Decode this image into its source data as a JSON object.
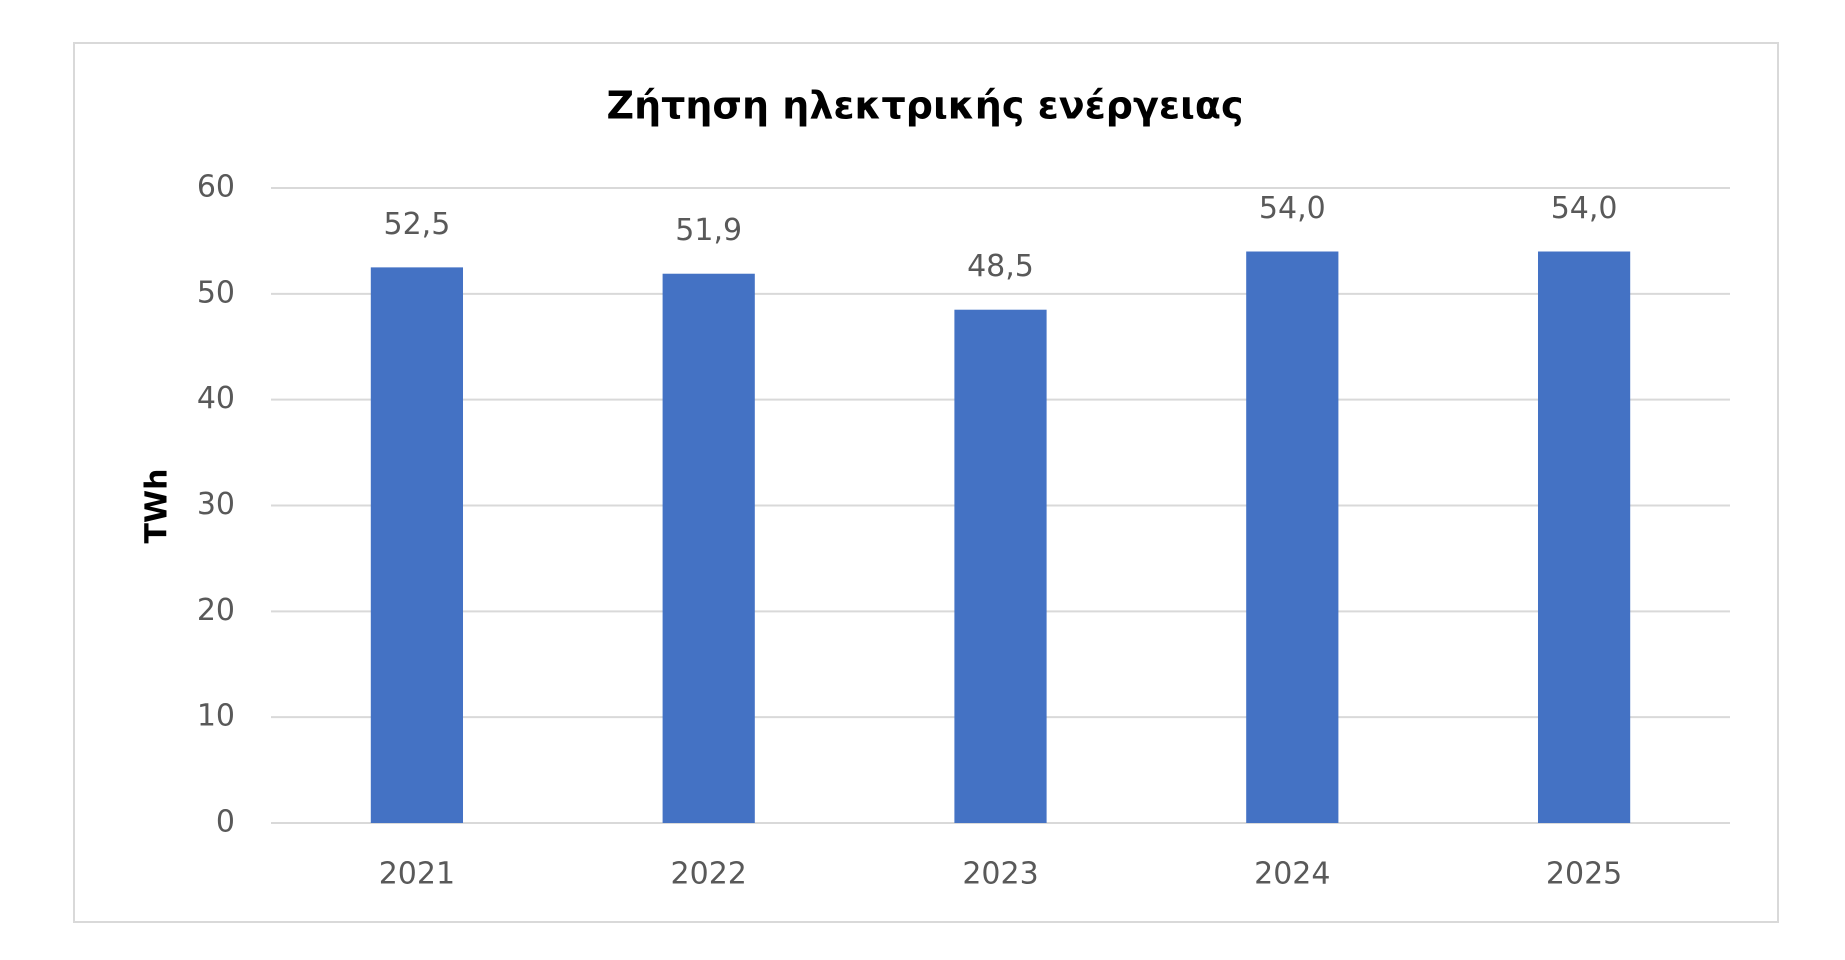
{
  "chart_data": {
    "type": "bar",
    "title": "Ζήτηση ηλεκτρικής ενέργειας",
    "y_label": "TWh",
    "categories": [
      "2021",
      "2022",
      "2023",
      "2024",
      "2025"
    ],
    "values": [
      52.5,
      51.9,
      48.5,
      54.0,
      54.0
    ],
    "value_labels": [
      "52,5",
      "51,9",
      "48,5",
      "54,0",
      "54,0"
    ],
    "color": "#4472c4",
    "ylim": [
      0,
      60
    ],
    "yticks": [
      0,
      10,
      20,
      30,
      40,
      50,
      60
    ],
    "grid": true
  }
}
